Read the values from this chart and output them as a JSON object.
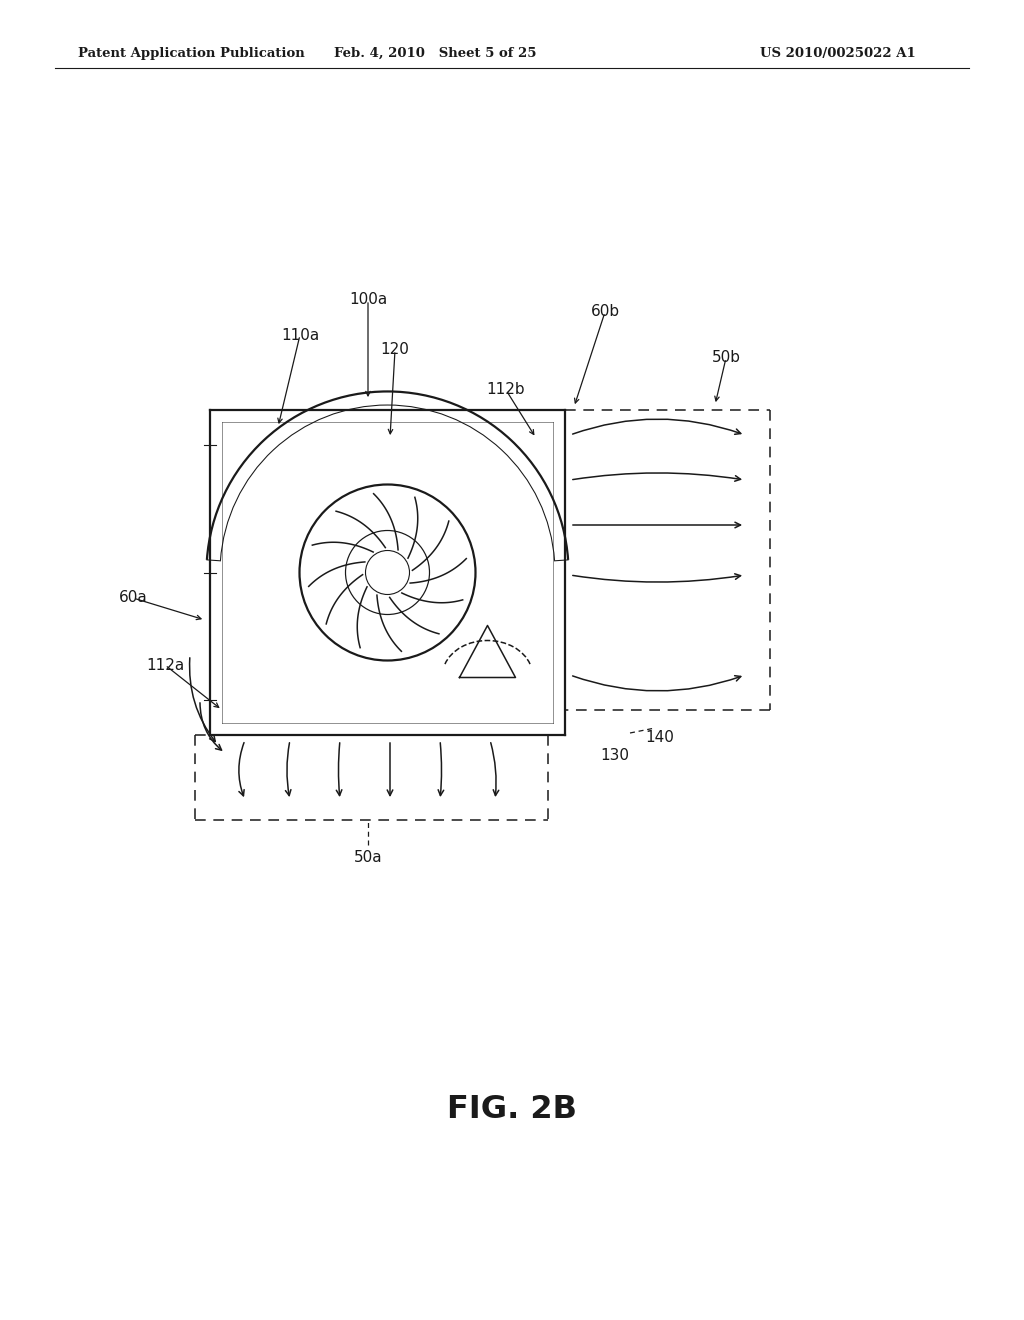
{
  "header_left": "Patent Application Publication",
  "header_mid": "Feb. 4, 2010   Sheet 5 of 25",
  "header_right": "US 2010/0025022 A1",
  "fig_label": "FIG. 2B",
  "bg_color": "#ffffff",
  "lc": "#1a1a1a"
}
